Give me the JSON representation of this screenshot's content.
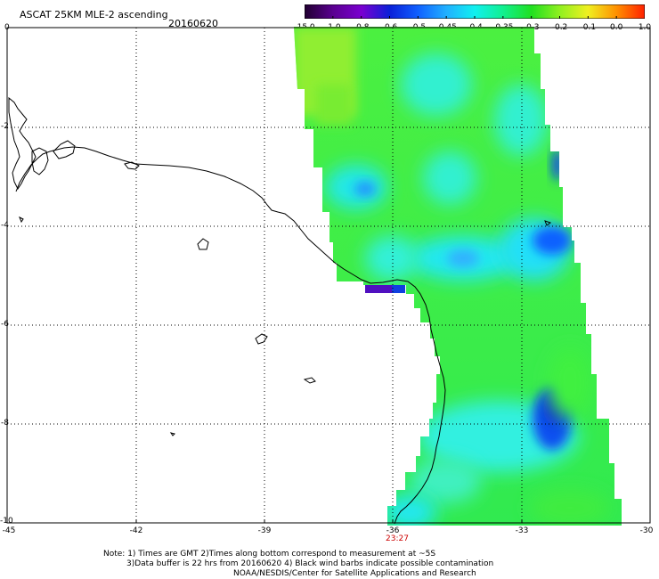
{
  "header": {
    "title": "ASCAT 25KM MLE-2 ascending",
    "date": "20160620"
  },
  "colorbar": {
    "labels": [
      "-15.0",
      "-1.0",
      "-0.8",
      "-0.6",
      "-0.5",
      "-0.45",
      "-0.4",
      "-0.35",
      "-0.3",
      "-0.2",
      "-0.1",
      "0.0",
      "1.0"
    ],
    "colors": [
      "#200030",
      "#5a0090",
      "#7a00d0",
      "#0a20d8",
      "#1060ff",
      "#20b0ff",
      "#10f0f0",
      "#10f090",
      "#20e020",
      "#90f020",
      "#f0f020",
      "#ff9000",
      "#ff2000"
    ]
  },
  "axes": {
    "y_labels": [
      "0",
      "-2",
      "-4",
      "-6",
      "-8",
      "-10"
    ],
    "x_labels": [
      "-45",
      "-42",
      "-39",
      "-36",
      "-33",
      "-30"
    ]
  },
  "time_label": "23:27",
  "notes": {
    "line1": "Note: 1) Times are GMT 2)Times along bottom correspond to measurement at ~5S",
    "line2": "3)Data buffer is 22 hrs from 20160620 4) Black wind barbs indicate possible contamination",
    "line3": "NOAA/NESDIS/Center for Satellite Applications and Research"
  }
}
